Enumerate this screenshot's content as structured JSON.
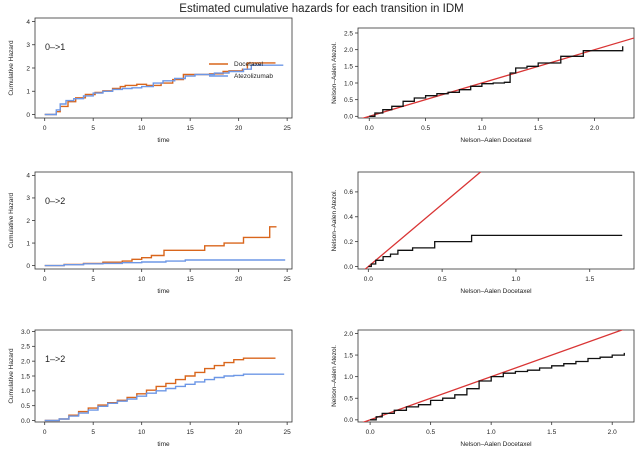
{
  "page_title": "Estimated cumulative hazards for each transition in IDM",
  "colors": {
    "docetaxel": "#d9661c",
    "atezolizumab": "#6d97e6",
    "black": "#111111",
    "identity": "#d93535"
  },
  "chart_data": [
    {
      "type": "line",
      "id": "ch-01",
      "step": true,
      "annotation": "0–>1",
      "xlabel": "time",
      "ylabel": "Cumulative Hazard",
      "xlim": [
        -1,
        25.5
      ],
      "ylim": [
        -0.15,
        4.15
      ],
      "xticks": [
        0,
        5,
        10,
        15,
        20,
        25
      ],
      "yticks": [
        0,
        1,
        2,
        3,
        4
      ],
      "legend": {
        "position": "right",
        "entries": [
          "Docetaxel",
          "Atezolizumab"
        ]
      },
      "series": [
        {
          "name": "Docetaxel",
          "color": "#d9661c",
          "x": [
            0,
            1.2,
            1.6,
            2.4,
            3.2,
            4.2,
            5.2,
            6.0,
            7.0,
            7.8,
            8.3,
            9.5,
            10.5,
            12.0,
            13.2,
            14.3,
            15.1,
            17.0,
            18.4,
            19.0,
            20.4,
            20.9,
            21.5,
            23.8
          ],
          "y": [
            0,
            0.12,
            0.35,
            0.55,
            0.72,
            0.86,
            0.95,
            1.02,
            1.12,
            1.2,
            1.25,
            1.3,
            1.25,
            1.35,
            1.5,
            1.72,
            1.72,
            1.75,
            1.85,
            1.88,
            1.95,
            2.22,
            2.22,
            2.22
          ]
        },
        {
          "name": "Atezolizumab",
          "color": "#6d97e6",
          "x": [
            0,
            1.2,
            1.6,
            2.2,
            3.0,
            4.0,
            5.0,
            6.0,
            7.0,
            8.0,
            9.0,
            10.0,
            11.2,
            12.2,
            13.4,
            14.5,
            15.5,
            17.5,
            19.0,
            20.5,
            21.3,
            24.6
          ],
          "y": [
            0,
            0.2,
            0.45,
            0.6,
            0.68,
            0.8,
            0.92,
            1.0,
            1.08,
            1.12,
            1.15,
            1.2,
            1.35,
            1.45,
            1.55,
            1.65,
            1.72,
            1.78,
            1.85,
            1.95,
            2.12,
            2.12
          ]
        }
      ]
    },
    {
      "type": "line",
      "id": "ch-02",
      "step": true,
      "xlabel": "Nelson–Aalen Docetaxel",
      "ylabel": "Nelson–Aalen Atezol.",
      "xlim": [
        -0.1,
        2.35
      ],
      "ylim": [
        -0.05,
        2.65
      ],
      "xticks": [
        0.0,
        0.5,
        1.0,
        1.5,
        2.0
      ],
      "yticks": [
        0.0,
        0.5,
        1.0,
        1.5,
        2.0,
        2.5
      ],
      "reference_line": "y = x",
      "series": [
        {
          "name": "Nelson–Aalen",
          "color": "#111111",
          "x": [
            0,
            0.05,
            0.12,
            0.2,
            0.3,
            0.4,
            0.5,
            0.6,
            0.7,
            0.8,
            0.9,
            1.0,
            1.1,
            1.2,
            1.25,
            1.3,
            1.4,
            1.5,
            1.7,
            1.9,
            2.25
          ],
          "y": [
            0,
            0.1,
            0.2,
            0.3,
            0.45,
            0.55,
            0.62,
            0.68,
            0.72,
            0.8,
            0.9,
            0.98,
            1.0,
            1.02,
            1.3,
            1.45,
            1.5,
            1.6,
            1.8,
            1.97,
            2.1
          ]
        }
      ]
    },
    {
      "type": "line",
      "id": "ch-03",
      "step": true,
      "annotation": "0–>2",
      "xlabel": "time",
      "ylabel": "Cumulative Hazard",
      "xlim": [
        -1,
        25.5
      ],
      "ylim": [
        -0.15,
        4.15
      ],
      "xticks": [
        0,
        5,
        10,
        15,
        20,
        25
      ],
      "yticks": [
        0,
        1,
        2,
        3,
        4
      ],
      "series": [
        {
          "name": "Docetaxel",
          "color": "#d9661c",
          "x": [
            0,
            2.0,
            4.0,
            6.0,
            8.0,
            9.0,
            10.0,
            11.0,
            12.3,
            16.5,
            18.5,
            20.5,
            23.2,
            23.9
          ],
          "y": [
            0,
            0.05,
            0.1,
            0.15,
            0.2,
            0.28,
            0.35,
            0.45,
            0.68,
            0.88,
            1.0,
            1.25,
            1.72,
            1.72
          ]
        },
        {
          "name": "Atezolizumab",
          "color": "#6d97e6",
          "x": [
            0,
            2.0,
            4.0,
            6.0,
            8.0,
            10.0,
            12.5,
            14.5,
            24.8
          ],
          "y": [
            0,
            0.04,
            0.08,
            0.1,
            0.13,
            0.16,
            0.2,
            0.25,
            0.25
          ]
        }
      ]
    },
    {
      "type": "line",
      "id": "ch-04",
      "step": true,
      "xlabel": "Nelson–Aalen Docetaxel",
      "ylabel": "Nelson–Aalen Atezol.",
      "xlim": [
        -0.07,
        1.8
      ],
      "ylim": [
        -0.02,
        0.76
      ],
      "xticks": [
        0.0,
        0.5,
        1.0,
        1.5
      ],
      "yticks": [
        0.0,
        0.2,
        0.4,
        0.6
      ],
      "reference_line": "y = x",
      "series": [
        {
          "name": "Nelson–Aalen",
          "color": "#111111",
          "x": [
            0,
            0.02,
            0.05,
            0.1,
            0.15,
            0.2,
            0.3,
            0.45,
            0.7,
            1.72
          ],
          "y": [
            0,
            0.02,
            0.05,
            0.08,
            0.1,
            0.13,
            0.15,
            0.2,
            0.25,
            0.25
          ]
        }
      ]
    },
    {
      "type": "line",
      "id": "ch-05",
      "step": true,
      "annotation": "1–>2",
      "xlabel": "time",
      "ylabel": "Cumulative Hazard",
      "xlim": [
        -1,
        25.5
      ],
      "ylim": [
        -0.05,
        3.05
      ],
      "xticks": [
        0,
        5,
        10,
        15,
        20,
        25
      ],
      "yticks": [
        0.0,
        0.5,
        1.0,
        1.5,
        2.0,
        2.5,
        3.0
      ],
      "series": [
        {
          "name": "Docetaxel",
          "color": "#d9661c",
          "x": [
            0,
            1.5,
            2.5,
            3.5,
            4.5,
            5.5,
            6.5,
            7.5,
            8.5,
            9.5,
            10.5,
            11.5,
            12.5,
            13.5,
            14.5,
            15.5,
            16.5,
            17.5,
            18.5,
            19.5,
            20.5,
            23.8
          ],
          "y": [
            0,
            0.05,
            0.18,
            0.3,
            0.42,
            0.52,
            0.6,
            0.68,
            0.78,
            0.9,
            1.02,
            1.15,
            1.25,
            1.38,
            1.5,
            1.62,
            1.75,
            1.85,
            1.95,
            2.05,
            2.1,
            2.1
          ]
        },
        {
          "name": "Atezolizumab",
          "color": "#6d97e6",
          "x": [
            0,
            1.5,
            2.5,
            3.5,
            4.5,
            5.5,
            6.5,
            7.5,
            8.5,
            9.5,
            10.5,
            11.5,
            12.5,
            13.5,
            14.5,
            15.5,
            16.5,
            17.5,
            18.5,
            19.5,
            20.5,
            24.7
          ],
          "y": [
            0,
            0.05,
            0.15,
            0.25,
            0.35,
            0.48,
            0.58,
            0.65,
            0.72,
            0.82,
            0.92,
            1.0,
            1.08,
            1.15,
            1.22,
            1.3,
            1.38,
            1.45,
            1.5,
            1.52,
            1.56,
            1.56
          ]
        }
      ]
    },
    {
      "type": "line",
      "id": "ch-06",
      "step": true,
      "xlabel": "Nelson–Aalen Docetaxel",
      "ylabel": "Nelson–Aalen Atezol.",
      "xlim": [
        -0.1,
        2.18
      ],
      "ylim": [
        -0.05,
        2.08
      ],
      "xticks": [
        0.0,
        0.5,
        1.0,
        1.5,
        2.0
      ],
      "yticks": [
        0.0,
        0.5,
        1.0,
        1.5,
        2.0
      ],
      "reference_line": "y = x",
      "series": [
        {
          "name": "Nelson–Aalen",
          "color": "#111111",
          "x": [
            0,
            0.05,
            0.1,
            0.2,
            0.3,
            0.4,
            0.5,
            0.6,
            0.7,
            0.8,
            0.9,
            1.0,
            1.1,
            1.2,
            1.3,
            1.4,
            1.5,
            1.6,
            1.7,
            1.8,
            1.9,
            2.0,
            2.1
          ],
          "y": [
            0,
            0.07,
            0.15,
            0.22,
            0.3,
            0.35,
            0.45,
            0.5,
            0.58,
            0.72,
            0.9,
            1.0,
            1.08,
            1.12,
            1.15,
            1.2,
            1.25,
            1.3,
            1.35,
            1.42,
            1.45,
            1.5,
            1.55
          ]
        }
      ]
    }
  ]
}
